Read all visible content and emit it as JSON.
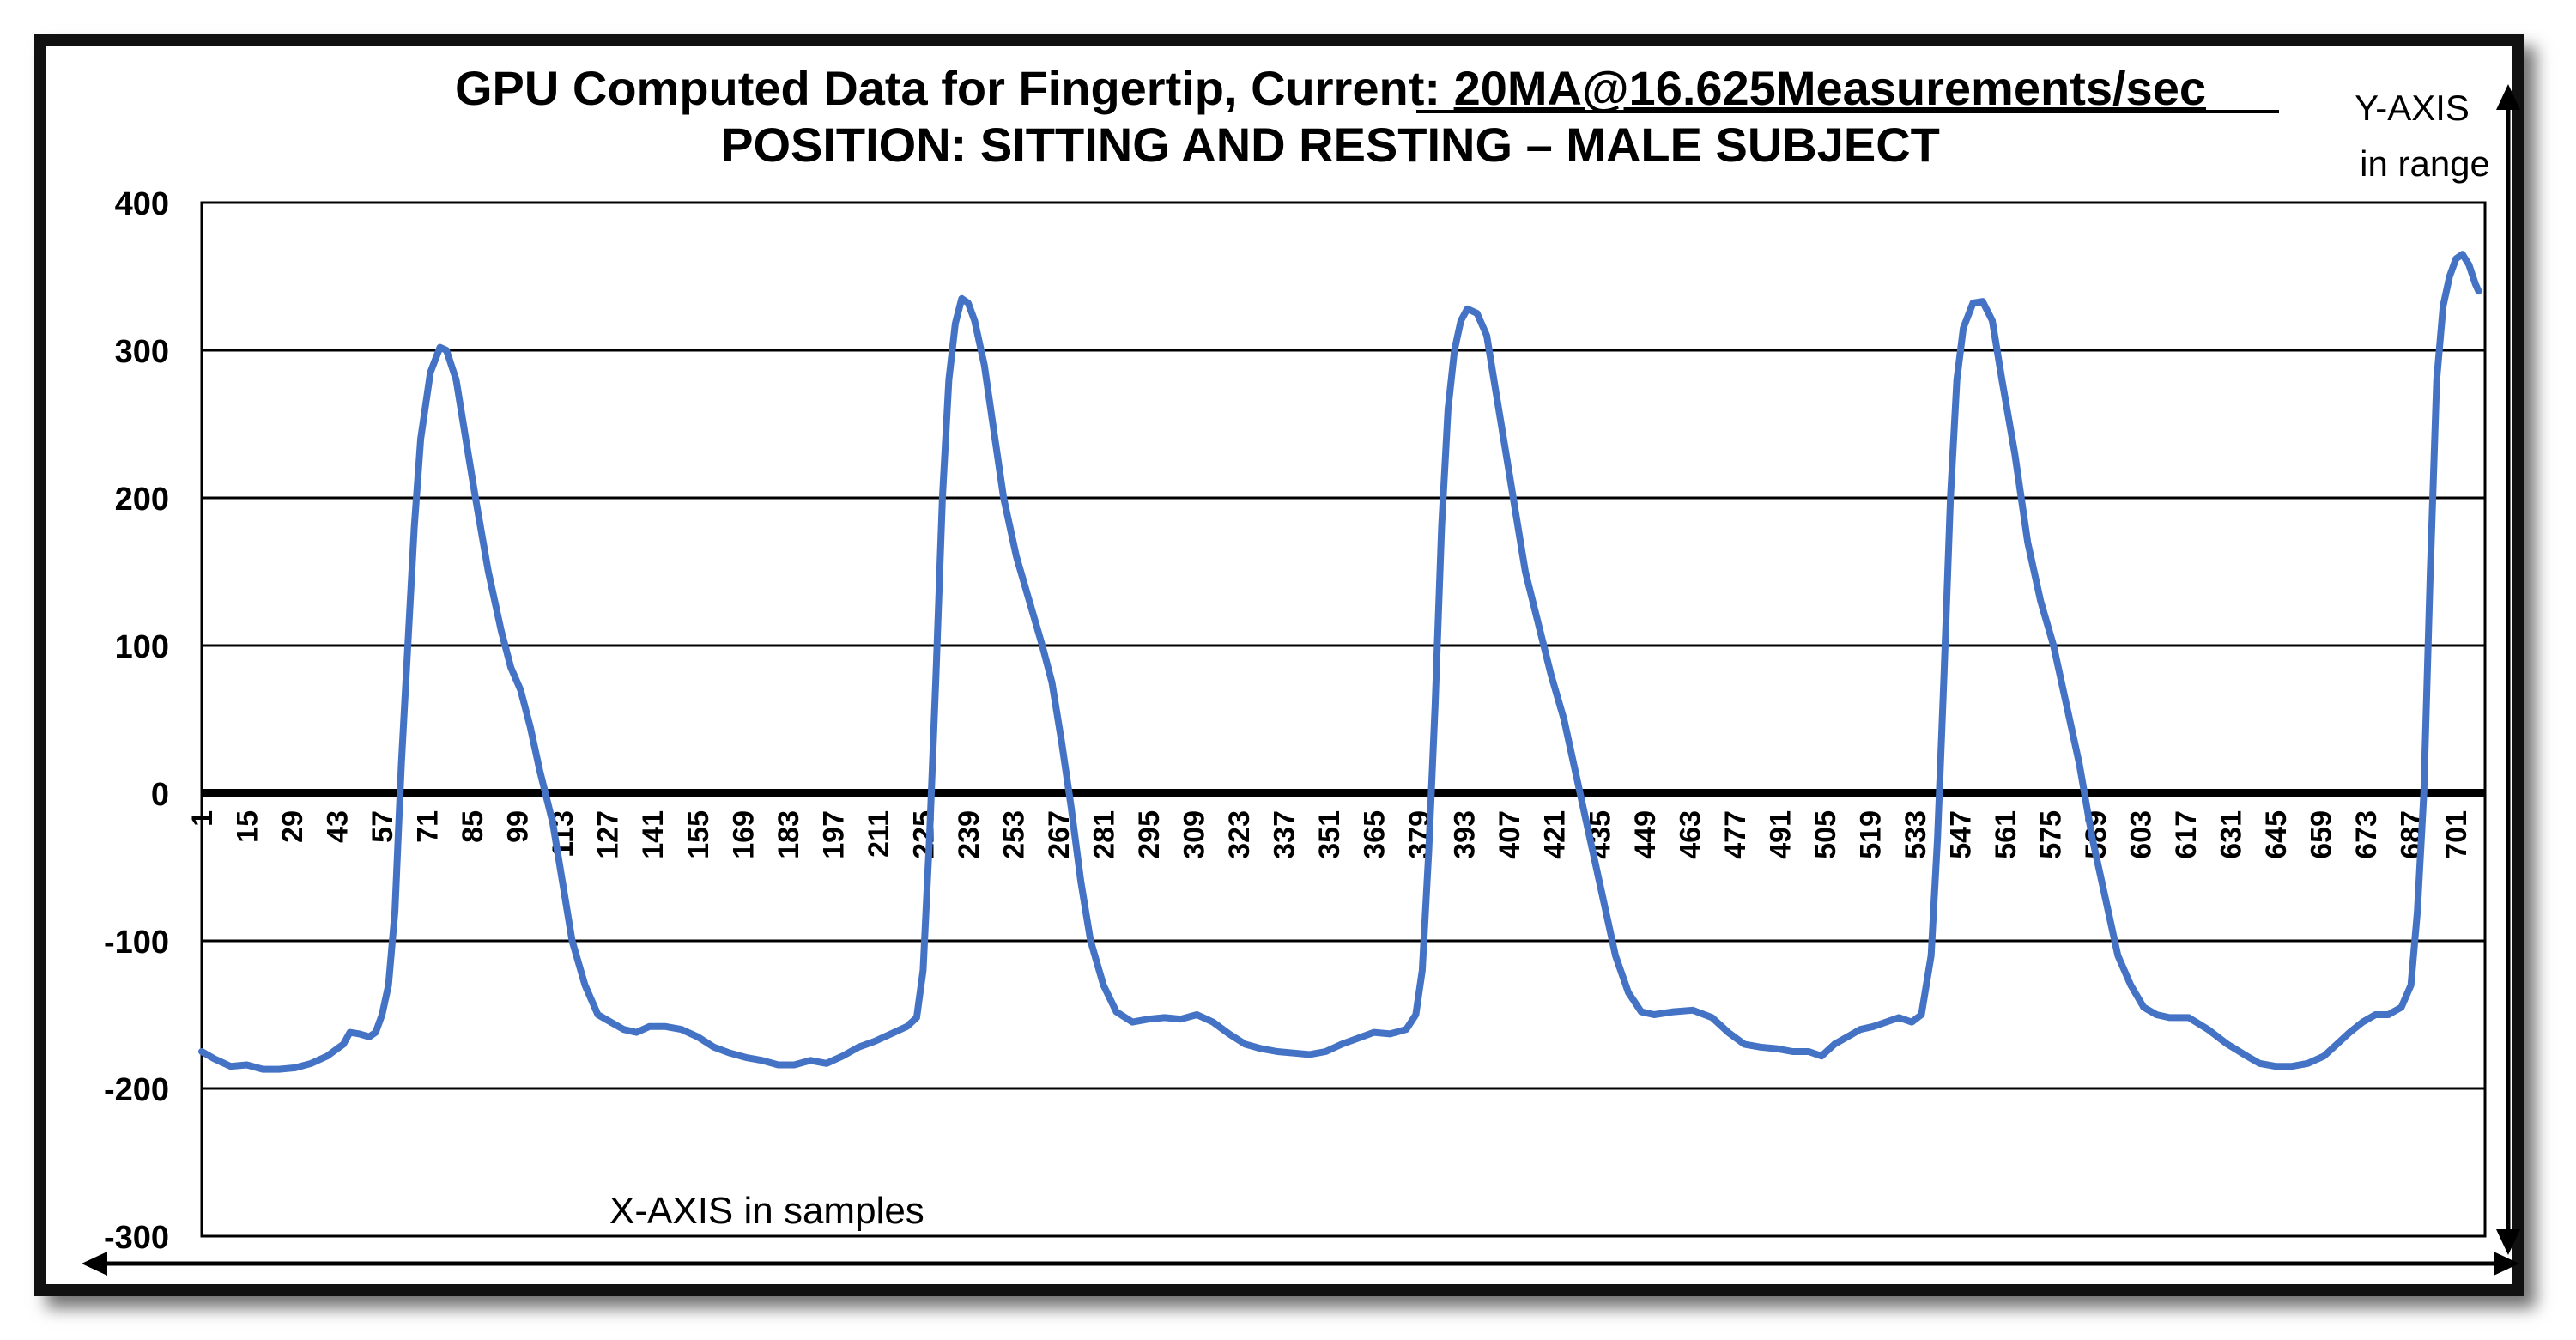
{
  "chart_data": {
    "type": "line",
    "title_prefix": "GPU Computed Data for Fingertip, Current: ",
    "title_underlined": "20MA@16.625Measurements/sec",
    "subtitle": "POSITION: SITTING AND RESTING – MALE SUBJECT",
    "xlabel": "X-AXIS in samples",
    "ylabel_line1": "Y-AXIS",
    "ylabel_line2": "in range",
    "ylim": [
      -300,
      400
    ],
    "xlim": [
      1,
      710
    ],
    "y_ticks": [
      "400",
      "300",
      "200",
      "100",
      "0",
      "-100",
      "-200",
      "-300"
    ],
    "x_ticks": [
      "1",
      "15",
      "29",
      "43",
      "57",
      "71",
      "85",
      "99",
      "113",
      "127",
      "141",
      "155",
      "169",
      "183",
      "197",
      "211",
      "225",
      "239",
      "253",
      "267",
      "281",
      "295",
      "309",
      "323",
      "337",
      "351",
      "365",
      "379",
      "393",
      "407",
      "421",
      "435",
      "449",
      "463",
      "477",
      "491",
      "505",
      "519",
      "533",
      "547",
      "561",
      "575",
      "589",
      "603",
      "617",
      "631",
      "645",
      "659",
      "673",
      "687",
      "701"
    ],
    "grid": true,
    "line_color": "#4472C4",
    "series": [
      {
        "points": [
          [
            1,
            -175
          ],
          [
            5,
            -180
          ],
          [
            10,
            -185
          ],
          [
            15,
            -184
          ],
          [
            20,
            -187
          ],
          [
            25,
            -187
          ],
          [
            30,
            -186
          ],
          [
            35,
            -183
          ],
          [
            40,
            -178
          ],
          [
            45,
            -170
          ],
          [
            47,
            -162
          ],
          [
            50,
            -163
          ],
          [
            53,
            -165
          ],
          [
            55,
            -162
          ],
          [
            57,
            -150
          ],
          [
            59,
            -130
          ],
          [
            61,
            -80
          ],
          [
            63,
            20
          ],
          [
            65,
            100
          ],
          [
            67,
            180
          ],
          [
            69,
            240
          ],
          [
            72,
            285
          ],
          [
            75,
            302
          ],
          [
            77,
            300
          ],
          [
            80,
            280
          ],
          [
            83,
            240
          ],
          [
            86,
            200
          ],
          [
            90,
            150
          ],
          [
            94,
            110
          ],
          [
            97,
            85
          ],
          [
            100,
            70
          ],
          [
            103,
            45
          ],
          [
            106,
            15
          ],
          [
            110,
            -20
          ],
          [
            113,
            -60
          ],
          [
            116,
            -100
          ],
          [
            120,
            -130
          ],
          [
            124,
            -150
          ],
          [
            128,
            -155
          ],
          [
            132,
            -160
          ],
          [
            136,
            -162
          ],
          [
            140,
            -158
          ],
          [
            145,
            -158
          ],
          [
            150,
            -160
          ],
          [
            155,
            -165
          ],
          [
            160,
            -172
          ],
          [
            165,
            -176
          ],
          [
            170,
            -179
          ],
          [
            175,
            -181
          ],
          [
            180,
            -184
          ],
          [
            185,
            -184
          ],
          [
            190,
            -181
          ],
          [
            195,
            -183
          ],
          [
            200,
            -178
          ],
          [
            205,
            -172
          ],
          [
            210,
            -168
          ],
          [
            215,
            -163
          ],
          [
            220,
            -158
          ],
          [
            223,
            -152
          ],
          [
            225,
            -120
          ],
          [
            227,
            -30
          ],
          [
            229,
            80
          ],
          [
            231,
            200
          ],
          [
            233,
            280
          ],
          [
            235,
            318
          ],
          [
            237,
            335
          ],
          [
            239,
            332
          ],
          [
            241,
            320
          ],
          [
            244,
            290
          ],
          [
            247,
            245
          ],
          [
            250,
            200
          ],
          [
            254,
            160
          ],
          [
            258,
            130
          ],
          [
            262,
            100
          ],
          [
            265,
            75
          ],
          [
            268,
            35
          ],
          [
            271,
            -10
          ],
          [
            274,
            -60
          ],
          [
            277,
            -100
          ],
          [
            281,
            -130
          ],
          [
            285,
            -148
          ],
          [
            290,
            -155
          ],
          [
            295,
            -153
          ],
          [
            300,
            -152
          ],
          [
            305,
            -153
          ],
          [
            310,
            -150
          ],
          [
            315,
            -155
          ],
          [
            320,
            -163
          ],
          [
            325,
            -170
          ],
          [
            330,
            -173
          ],
          [
            335,
            -175
          ],
          [
            340,
            -176
          ],
          [
            345,
            -177
          ],
          [
            350,
            -175
          ],
          [
            355,
            -170
          ],
          [
            360,
            -166
          ],
          [
            365,
            -162
          ],
          [
            370,
            -163
          ],
          [
            375,
            -160
          ],
          [
            378,
            -150
          ],
          [
            380,
            -120
          ],
          [
            382,
            -40
          ],
          [
            384,
            60
          ],
          [
            386,
            180
          ],
          [
            388,
            260
          ],
          [
            390,
            300
          ],
          [
            392,
            320
          ],
          [
            394,
            328
          ],
          [
            397,
            325
          ],
          [
            400,
            310
          ],
          [
            403,
            270
          ],
          [
            406,
            230
          ],
          [
            409,
            190
          ],
          [
            412,
            150
          ],
          [
            416,
            115
          ],
          [
            420,
            80
          ],
          [
            424,
            50
          ],
          [
            428,
            10
          ],
          [
            432,
            -30
          ],
          [
            436,
            -70
          ],
          [
            440,
            -110
          ],
          [
            444,
            -135
          ],
          [
            448,
            -148
          ],
          [
            452,
            -150
          ],
          [
            458,
            -148
          ],
          [
            464,
            -147
          ],
          [
            470,
            -152
          ],
          [
            475,
            -162
          ],
          [
            480,
            -170
          ],
          [
            485,
            -172
          ],
          [
            490,
            -173
          ],
          [
            495,
            -175
          ],
          [
            500,
            -175
          ],
          [
            504,
            -178
          ],
          [
            508,
            -170
          ],
          [
            512,
            -165
          ],
          [
            516,
            -160
          ],
          [
            520,
            -158
          ],
          [
            524,
            -155
          ],
          [
            528,
            -152
          ],
          [
            532,
            -155
          ],
          [
            535,
            -150
          ],
          [
            538,
            -110
          ],
          [
            540,
            -30
          ],
          [
            542,
            80
          ],
          [
            544,
            200
          ],
          [
            546,
            280
          ],
          [
            548,
            315
          ],
          [
            551,
            332
          ],
          [
            554,
            333
          ],
          [
            557,
            320
          ],
          [
            560,
            280
          ],
          [
            564,
            230
          ],
          [
            568,
            170
          ],
          [
            572,
            130
          ],
          [
            576,
            100
          ],
          [
            580,
            60
          ],
          [
            584,
            20
          ],
          [
            588,
            -30
          ],
          [
            592,
            -70
          ],
          [
            596,
            -110
          ],
          [
            600,
            -130
          ],
          [
            604,
            -145
          ],
          [
            608,
            -150
          ],
          [
            612,
            -152
          ],
          [
            618,
            -152
          ],
          [
            624,
            -160
          ],
          [
            630,
            -170
          ],
          [
            636,
            -178
          ],
          [
            640,
            -183
          ],
          [
            645,
            -185
          ],
          [
            650,
            -185
          ],
          [
            655,
            -183
          ],
          [
            660,
            -178
          ],
          [
            664,
            -170
          ],
          [
            668,
            -162
          ],
          [
            672,
            -155
          ],
          [
            676,
            -150
          ],
          [
            680,
            -150
          ],
          [
            684,
            -145
          ],
          [
            687,
            -130
          ],
          [
            689,
            -80
          ],
          [
            691,
            0
          ],
          [
            693,
            150
          ],
          [
            695,
            280
          ],
          [
            697,
            330
          ],
          [
            699,
            350
          ],
          [
            701,
            362
          ],
          [
            703,
            365
          ],
          [
            705,
            358
          ],
          [
            707,
            345
          ],
          [
            708,
            340
          ]
        ]
      }
    ]
  }
}
